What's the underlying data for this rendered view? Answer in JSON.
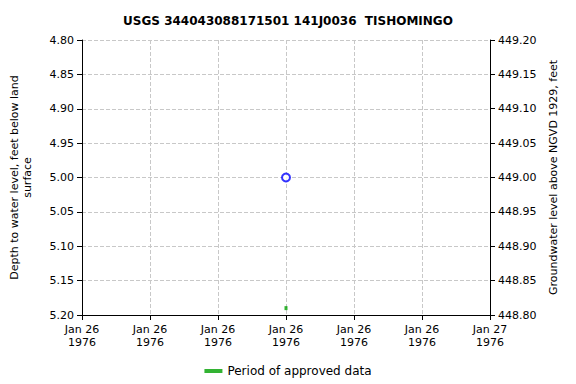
{
  "chart_data": {
    "type": "scatter",
    "title": "USGS 344043088171501 141J0036  TISHOMINGO",
    "y_label": "Depth to water level, feet below land\nsurface",
    "y2_label": "Groundwater level above NGVD 1929, feet",
    "x": [
      "Jan 26\n1976",
      "Jan 26\n1976",
      "Jan 26\n1976",
      "Jan 26\n1976",
      "Jan 26\n1976",
      "Jan 26\n1976",
      "Jan 27\n1976"
    ],
    "series": [
      {
        "color": "#0000ff",
        "marker": "open_circle",
        "values": [
          null,
          null,
          null,
          5.0,
          null,
          null,
          null
        ]
      },
      {
        "name": "Period of approved data",
        "color": "#00a000",
        "marker": "bar",
        "values": [
          null,
          null,
          null,
          5.19,
          null,
          null,
          null
        ]
      }
    ],
    "ylim": [
      4.8,
      5.2
    ],
    "yticks": [
      {
        "value": 4.8,
        "label": "4.80"
      },
      {
        "value": 4.85,
        "label": "4.85"
      },
      {
        "value": 4.9,
        "label": "4.90"
      },
      {
        "value": 4.95,
        "label": "4.95"
      },
      {
        "value": 5.0,
        "label": "5.00"
      },
      {
        "value": 5.05,
        "label": "5.05"
      },
      {
        "value": 5.1,
        "label": "5.10"
      },
      {
        "value": 5.15,
        "label": "5.15"
      },
      {
        "value": 5.2,
        "label": "5.20"
      }
    ],
    "y2lim": [
      448.8,
      449.2
    ],
    "y2ticks": [
      {
        "value": 448.8,
        "label": "448.80"
      },
      {
        "value": 448.85,
        "label": "448.85"
      },
      {
        "value": 448.9,
        "label": "448.90"
      },
      {
        "value": 448.95,
        "label": "448.95"
      },
      {
        "value": 449.0,
        "label": "449.00"
      },
      {
        "value": 449.05,
        "label": "449.05"
      },
      {
        "value": 449.1,
        "label": "449.10"
      },
      {
        "value": 449.15,
        "label": "449.15"
      },
      {
        "value": 449.2,
        "label": "449.20"
      }
    ],
    "grid": true,
    "legend": "bottom"
  }
}
